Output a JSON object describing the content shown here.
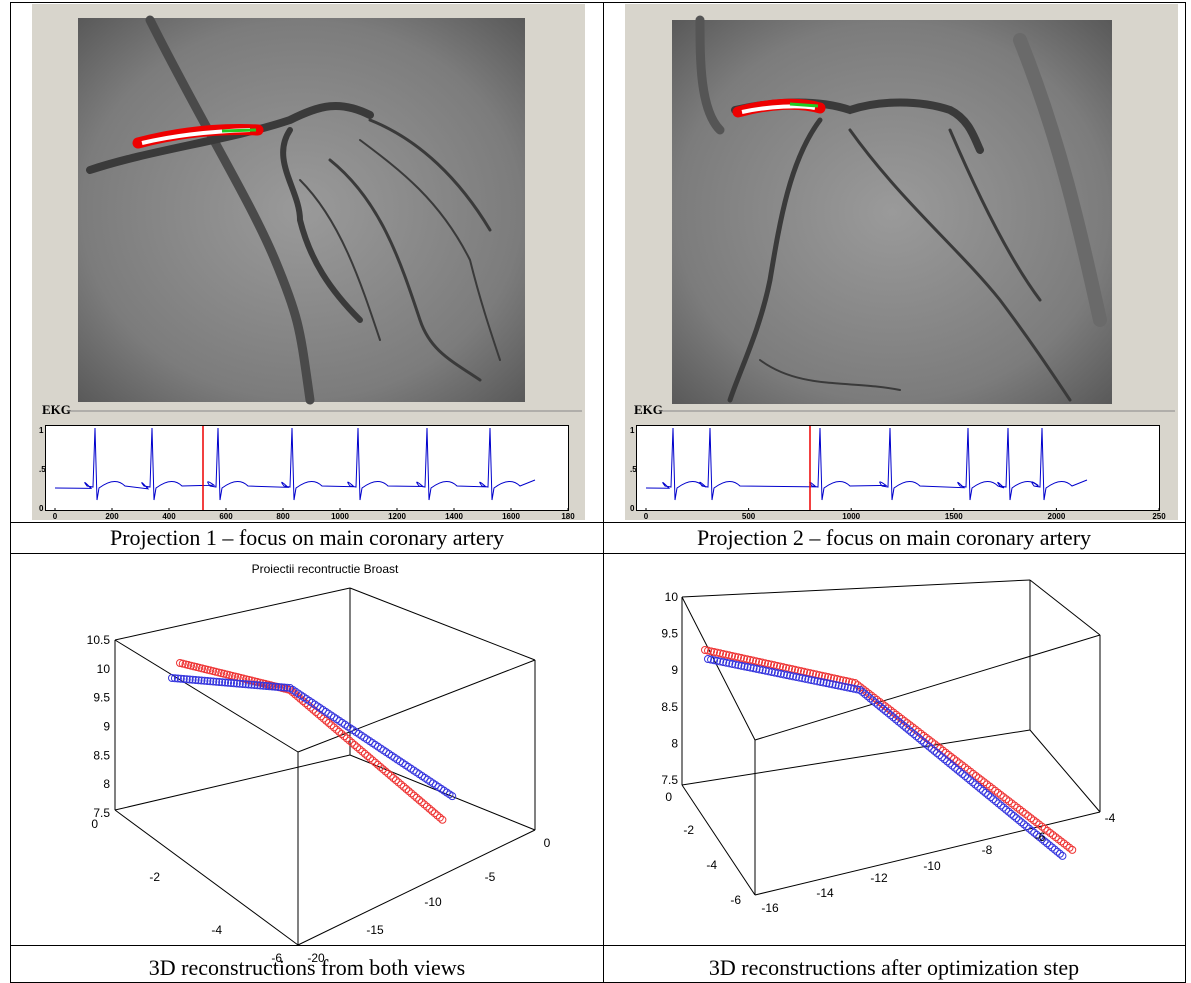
{
  "table": {
    "cells": [
      {
        "ekg_label": "EKG",
        "ekg_yticks": [
          "1",
          ".5",
          "0"
        ],
        "ekg_xticks": [
          "0",
          "200",
          "400",
          "600",
          "800",
          "1000",
          "1200",
          "1400",
          "1600",
          "180"
        ],
        "caption": "Projection 1 – focus on main coronary artery"
      },
      {
        "ekg_label": "EKG",
        "ekg_yticks": [
          "1",
          ".5",
          "0"
        ],
        "ekg_xticks": [
          "0",
          "500",
          "1000",
          "1500",
          "2000",
          "250"
        ],
        "caption": "Projection 2 – focus on main coronary artery"
      },
      {
        "plot_title": "Proiectii recontructie Broast",
        "zticks": [
          "7.5",
          "8",
          "8.5",
          "9",
          "9.5",
          "10",
          "10.5"
        ],
        "xticks": [
          "0",
          "-2",
          "-4",
          "-6"
        ],
        "yticks": [
          "-20",
          "-15",
          "-10",
          "-5",
          "0"
        ],
        "caption": "3D reconstructions from both views"
      },
      {
        "zticks": [
          "7.5",
          "8",
          "8.5",
          "9",
          "9.5",
          "10"
        ],
        "xticks": [
          "0",
          "-2",
          "-4",
          "-6"
        ],
        "yticks": [
          "-16",
          "-14",
          "-12",
          "-10",
          "-8",
          "-6",
          "-4"
        ],
        "caption": "3D reconstructions after optimization step"
      }
    ]
  }
}
